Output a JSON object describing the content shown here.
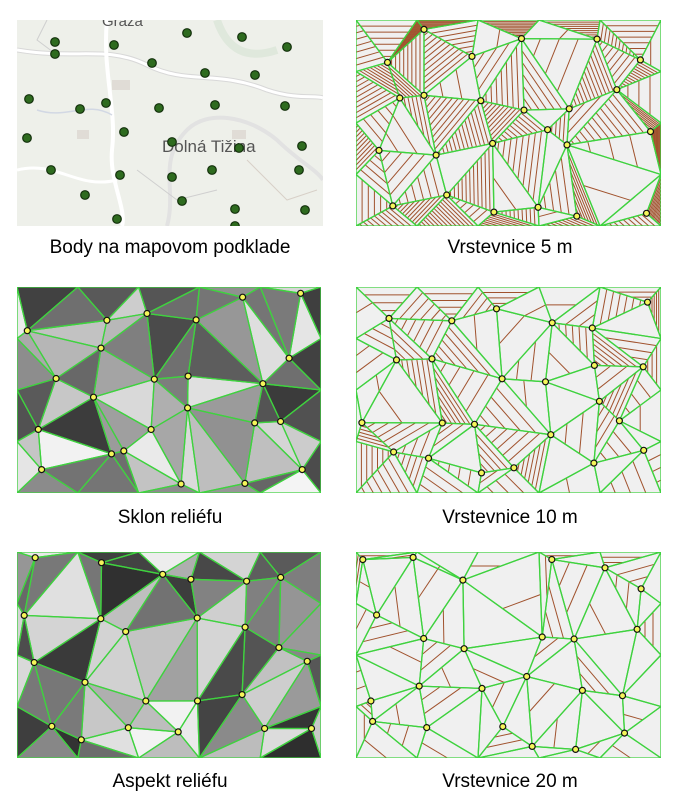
{
  "panels": [
    {
      "caption": "Body na mapovom podklade"
    },
    {
      "caption": "Vrstevnice 5 m"
    },
    {
      "caption": "Sklon reliéfu"
    },
    {
      "caption": "Vrstevnice 10 m"
    },
    {
      "caption": "Aspekt reliéfu"
    },
    {
      "caption": "Vrstevnice 20 m"
    }
  ],
  "map": {
    "labels": [
      "Dolná Tižina",
      "Graza"
    ]
  },
  "colors": {
    "tin_edge": "#3fd23f",
    "contour": "#a0522d",
    "point_fill": "#f5f55a",
    "map_point": "#2e6b1f",
    "map_bg": "#eef0ea",
    "canvas_bg": "#f0f0f0"
  }
}
